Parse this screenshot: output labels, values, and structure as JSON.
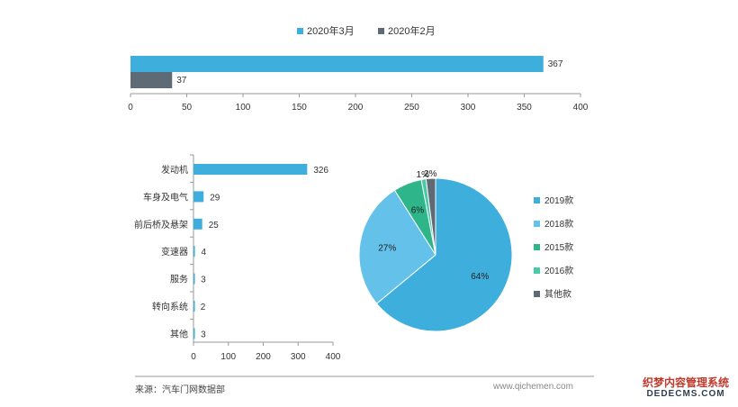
{
  "chart_data": [
    {
      "type": "bar",
      "orientation": "horizontal",
      "categories": [
        ""
      ],
      "series": [
        {
          "name": "2020年3月",
          "values": [
            367
          ],
          "color": "#3eaedc"
        },
        {
          "name": "2020年2月",
          "values": [
            37
          ],
          "color": "#5f6a77"
        }
      ],
      "xlim": [
        0,
        400
      ],
      "xticks": [
        "0",
        "50",
        "100",
        "150",
        "200",
        "250",
        "300",
        "350",
        "400"
      ],
      "legend": "top-center",
      "grid": false
    },
    {
      "type": "bar",
      "orientation": "horizontal",
      "categories": [
        "发动机",
        "车身及电气",
        "前后桥及悬架",
        "变速器",
        "服务",
        "转向系统",
        "其他"
      ],
      "values": [
        326,
        29,
        25,
        4,
        3,
        2,
        3
      ],
      "color": "#3eaedc",
      "xlim": [
        0,
        400
      ],
      "xticks": [
        "0",
        "100",
        "200",
        "300",
        "400"
      ],
      "grid": false
    },
    {
      "type": "pie",
      "labels": [
        "2019款",
        "2018款",
        "2015款",
        "2016款",
        "其他款"
      ],
      "values": [
        64,
        27,
        6,
        1,
        2
      ],
      "display_labels": [
        "64%",
        "27%",
        "6%",
        "1%",
        "2%"
      ],
      "colors": [
        "#3eaedc",
        "#63c1ea",
        "#2fb58a",
        "#49c9a5",
        "#5f6a77"
      ],
      "legend": "right"
    }
  ],
  "footer": {
    "source": "来源：汽车门网数据部",
    "site": "www.qichemen.com"
  },
  "watermark": {
    "line1": "织梦内容管理系统",
    "line2": "DEDECMS.COM"
  }
}
